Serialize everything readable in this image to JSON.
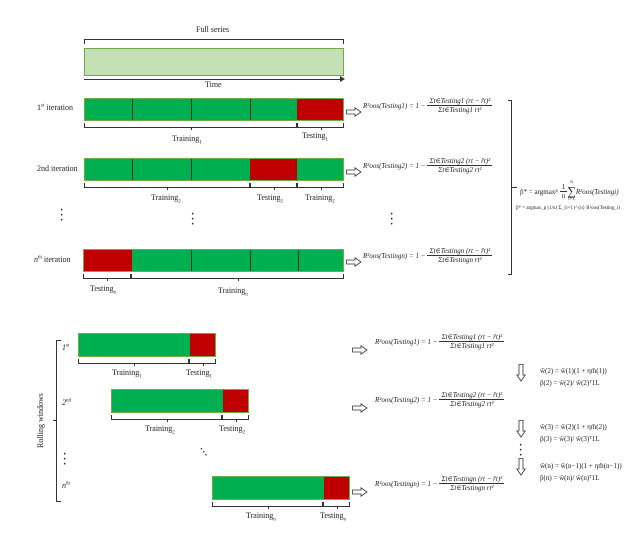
{
  "top": {
    "full_series_label": "Full series",
    "time_label": "Time",
    "colors": {
      "full_series_fill": "#c5e0b4",
      "training": "#00b050",
      "testing": "#c00000",
      "border": "#70ad47"
    },
    "iterations": [
      {
        "label": "1st iteration",
        "ord": "1",
        "sup": "st",
        "word": "iteration",
        "labels": [
          "Training",
          "1",
          "Testing",
          "1"
        ],
        "formula": {
          "lhs": "R²oos(Testing1) = 1 −",
          "num": "Σt∈Testing1 (rt − r̂t)²",
          "den": "Σt∈Testing1 rt²"
        }
      },
      {
        "label": "2nd iteration",
        "ord": "2",
        "sup": "nd",
        "word": "iteration",
        "labels": [
          "Training",
          "2",
          "Testing",
          "2",
          "Training",
          "2"
        ],
        "formula": {
          "lhs": "R²oos(Testing2) = 1 −",
          "num": "Σt∈Testing2 (rt − r̂t)²",
          "den": "Σt∈Testing2 rt²"
        }
      },
      {
        "label": "nth iteration",
        "ord": "n",
        "sup": "th",
        "word": "iteration",
        "labels": [
          "Testing",
          "n",
          "Training",
          "n"
        ],
        "formula": {
          "lhs": "R²oos(Testingn) = 1 −",
          "num": "Σt∈Testingn (rt − r̂t)²",
          "den": "Σt∈Testingn rt²"
        }
      }
    ],
    "objective": "p̂* = argmax_p (1/n) Σ_{i=1}^{n} R²oos(Testing_i)",
    "objective_parts": {
      "lhs": "p̂* = argmax",
      "sub": "p",
      "frac_num": "1",
      "frac_den": "n",
      "sum_top": "n",
      "sum_bot": "i=1",
      "term": "R²oos(Testingi)"
    }
  },
  "bottom": {
    "axis_label": "Rolling windows",
    "windows": [
      {
        "ord": "1",
        "sup": "st",
        "train": "Training",
        "test": "Testing",
        "sub": "1",
        "formula": {
          "lhs": "R²oos(Testing1) = 1 −",
          "num": "Σt∈Testing1 (rt − r̂t)²",
          "den": "Σt∈Testing1 rt²"
        }
      },
      {
        "ord": "2",
        "sup": "nd",
        "train": "Training",
        "test": "Testing",
        "sub": "2",
        "formula": {
          "lhs": "R²oos(Testing2) = 1 −",
          "num": "Σt∈Testing2 (rt − r̂t)²",
          "den": "Σt∈Testing2 rt²"
        }
      },
      {
        "ord": "n",
        "sup": "th",
        "train": "Training",
        "test": "Testing",
        "sub": "n",
        "formula": {
          "lhs": "R²oos(Testingn) = 1 −",
          "num": "Σt∈Testingn (rt − r̂t)²",
          "den": "Σt∈Testingn rt²"
        }
      }
    ],
    "updates": [
      {
        "w": "ŵ(2) = ŵ(1)(1 + ηm̂(1))",
        "p": "p̂(2) = ŵ(2)/ ŵ(2)ᵀ1L"
      },
      {
        "w": "ŵ(3) = ŵ(2)(1 + ηm̂(2))",
        "p": "p̂(3) = ŵ(3)/ ŵ(3)ᵀ1L"
      },
      {
        "w": "ŵ(n) = ŵ(n−1)(1 + ηm̂(n−1))",
        "p": "p̂(n) = ŵ(n)/ ŵ(n)ᵀ1L"
      }
    ]
  }
}
